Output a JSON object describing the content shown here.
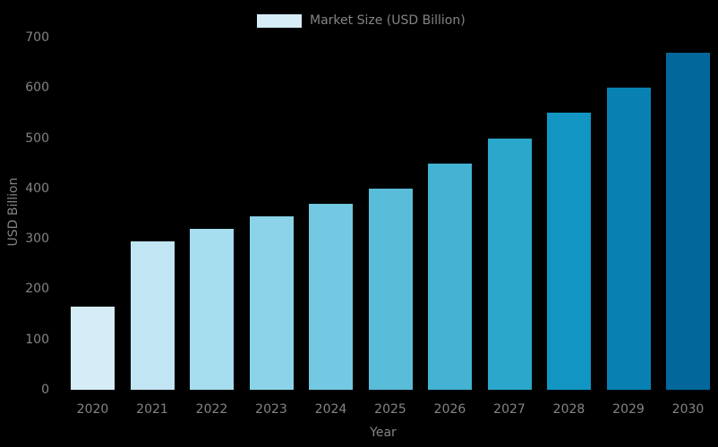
{
  "chart_data": {
    "type": "bar",
    "title": "",
    "legend_label": "Market Size (USD Billion)",
    "legend_position": "top-center",
    "categories": [
      "2020",
      "2021",
      "2022",
      "2023",
      "2024",
      "2025",
      "2026",
      "2027",
      "2028",
      "2029",
      "2030"
    ],
    "values": [
      165,
      295,
      320,
      345,
      370,
      400,
      450,
      500,
      550,
      600,
      670
    ],
    "xlabel": "Year",
    "ylabel": "USD Billion",
    "ylim": [
      0,
      700
    ],
    "yticks": [
      0,
      100,
      200,
      300,
      400,
      500,
      600,
      700
    ],
    "grid": false,
    "background_color": "#000000",
    "text_color": "#848484",
    "bar_colors": [
      "#d6edf8",
      "#c1e5f3",
      "#a6ddef",
      "#8bd3e8",
      "#72c9e1",
      "#59bdd9",
      "#43b2d3",
      "#2ba7cc",
      "#1295c3",
      "#0881b2",
      "#02689b"
    ]
  }
}
